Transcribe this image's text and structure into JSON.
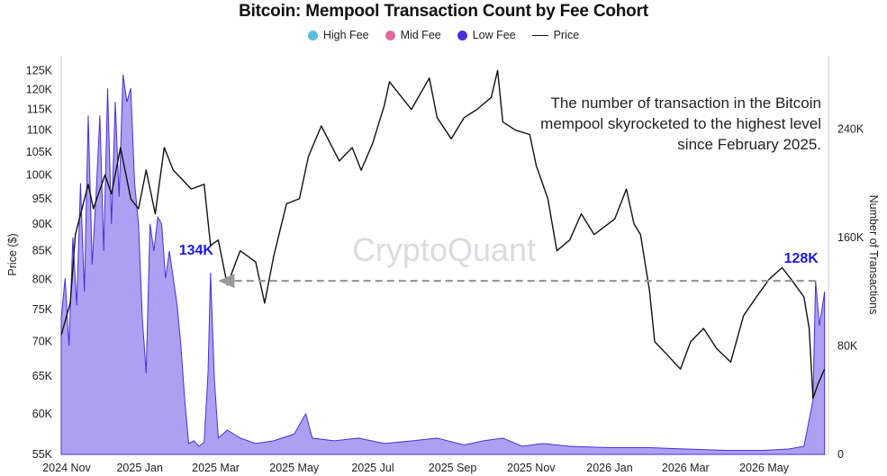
{
  "chart_data": {
    "type": "area",
    "title": "Bitcoin: Mempool Transaction Count by Fee Cohort",
    "ylabel_left": "Price ($)",
    "ylabel_right": "Number of Transactions",
    "watermark": "CryptoQuant",
    "annotation": "The number of transaction in the Bitcoin mempool skyrocketed to the highest level since February 2025.",
    "legend_position": "top-center",
    "legend": [
      {
        "name": "High Fee",
        "color": "#5bc0de",
        "kind": "dot"
      },
      {
        "name": "Mid Fee",
        "color": "#e06aa0",
        "kind": "dot"
      },
      {
        "name": "Low Fee",
        "color": "#4a2fd6",
        "kind": "dot"
      },
      {
        "name": "Price",
        "color": "#111111",
        "kind": "line"
      }
    ],
    "x_ticks": [
      "2024 Nov",
      "2025 Jan",
      "2025 Mar",
      "2025 May",
      "2025 Jul",
      "2025 Sep",
      "2025 Nov",
      "2026 Jan",
      "2026 Mar",
      "2026 May"
    ],
    "y_left_ticks": [
      55000,
      60000,
      65000,
      70000,
      75000,
      80000,
      85000,
      90000,
      95000,
      100000,
      105000,
      110000,
      115000,
      120000,
      125000
    ],
    "y_left_tick_labels": [
      "55K",
      "60K",
      "65K",
      "70K",
      "75K",
      "80K",
      "85K",
      "90K",
      "95K",
      "100K",
      "105K",
      "110K",
      "115K",
      "120K",
      "125K"
    ],
    "y_left_scale": "log",
    "y_right_ticks": [
      0,
      80000,
      160000,
      240000
    ],
    "y_right_tick_labels": [
      "0",
      "80K",
      "160K",
      "240K"
    ],
    "callouts": [
      {
        "label": "134K",
        "date": "2025-02-25",
        "value": 134000
      },
      {
        "label": "128K",
        "date": "2026-06-10",
        "value": 128000
      }
    ],
    "price_series": {
      "name": "Price",
      "points": [
        [
          "2024-11-01",
          71000
        ],
        [
          "2024-11-08",
          76000
        ],
        [
          "2024-11-12",
          88000
        ],
        [
          "2024-11-22",
          98000
        ],
        [
          "2024-11-26",
          93000
        ],
        [
          "2024-12-05",
          100000
        ],
        [
          "2024-12-10",
          96000
        ],
        [
          "2024-12-17",
          106000
        ],
        [
          "2024-12-25",
          95000
        ],
        [
          "2024-12-31",
          93000
        ],
        [
          "2025-01-06",
          101000
        ],
        [
          "2025-01-13",
          92000
        ],
        [
          "2025-01-20",
          106000
        ],
        [
          "2025-01-27",
          101000
        ],
        [
          "2025-02-03",
          99000
        ],
        [
          "2025-02-10",
          97000
        ],
        [
          "2025-02-20",
          98000
        ],
        [
          "2025-02-25",
          86000
        ],
        [
          "2025-03-03",
          87000
        ],
        [
          "2025-03-10",
          79000
        ],
        [
          "2025-03-20",
          85000
        ],
        [
          "2025-04-01",
          83000
        ],
        [
          "2025-04-08",
          76000
        ],
        [
          "2025-04-15",
          84000
        ],
        [
          "2025-04-25",
          94000
        ],
        [
          "2025-05-05",
          95000
        ],
        [
          "2025-05-12",
          104000
        ],
        [
          "2025-05-22",
          111000
        ],
        [
          "2025-06-05",
          103000
        ],
        [
          "2025-06-15",
          106000
        ],
        [
          "2025-06-22",
          101000
        ],
        [
          "2025-07-01",
          107000
        ],
        [
          "2025-07-10",
          116000
        ],
        [
          "2025-07-14",
          122000
        ],
        [
          "2025-07-31",
          115000
        ],
        [
          "2025-08-14",
          123000
        ],
        [
          "2025-08-20",
          113000
        ],
        [
          "2025-08-31",
          108000
        ],
        [
          "2025-09-10",
          113000
        ],
        [
          "2025-09-20",
          115000
        ],
        [
          "2025-10-01",
          118000
        ],
        [
          "2025-10-06",
          125000
        ],
        [
          "2025-10-10",
          112000
        ],
        [
          "2025-10-20",
          110000
        ],
        [
          "2025-10-31",
          109000
        ],
        [
          "2025-11-05",
          102000
        ],
        [
          "2025-11-14",
          95000
        ],
        [
          "2025-11-21",
          85000
        ],
        [
          "2025-12-01",
          87000
        ],
        [
          "2025-12-10",
          92000
        ],
        [
          "2025-12-20",
          88000
        ],
        [
          "2026-01-05",
          91000
        ],
        [
          "2026-01-14",
          97000
        ],
        [
          "2026-01-20",
          90000
        ],
        [
          "2026-01-25",
          88000
        ],
        [
          "2026-02-01",
          78000
        ],
        [
          "2026-02-05",
          70000
        ],
        [
          "2026-02-15",
          68000
        ],
        [
          "2026-02-25",
          66000
        ],
        [
          "2026-03-05",
          70000
        ],
        [
          "2026-03-15",
          72000
        ],
        [
          "2026-03-25",
          69000
        ],
        [
          "2026-04-05",
          67000
        ],
        [
          "2026-04-15",
          74000
        ],
        [
          "2026-04-25",
          77000
        ],
        [
          "2026-05-05",
          80000
        ],
        [
          "2026-05-15",
          82000
        ],
        [
          "2026-05-22",
          80000
        ],
        [
          "2026-06-01",
          77000
        ],
        [
          "2026-06-05",
          72000
        ],
        [
          "2026-06-08",
          62000
        ],
        [
          "2026-06-12",
          64000
        ],
        [
          "2026-06-17",
          66000
        ]
      ]
    },
    "low_fee_series": {
      "name": "Low Fee",
      "points": [
        [
          "2024-11-01",
          100000
        ],
        [
          "2024-11-04",
          130000
        ],
        [
          "2024-11-07",
          80000
        ],
        [
          "2024-11-10",
          160000
        ],
        [
          "2024-11-13",
          110000
        ],
        [
          "2024-11-16",
          200000
        ],
        [
          "2024-11-19",
          120000
        ],
        [
          "2024-11-22",
          250000
        ],
        [
          "2024-11-25",
          140000
        ],
        [
          "2024-11-28",
          190000
        ],
        [
          "2024-12-01",
          250000
        ],
        [
          "2024-12-04",
          150000
        ],
        [
          "2024-12-07",
          270000
        ],
        [
          "2024-12-10",
          170000
        ],
        [
          "2024-12-13",
          260000
        ],
        [
          "2024-12-16",
          190000
        ],
        [
          "2024-12-19",
          280000
        ],
        [
          "2024-12-22",
          260000
        ],
        [
          "2024-12-25",
          270000
        ],
        [
          "2024-12-28",
          200000
        ],
        [
          "2024-12-31",
          170000
        ],
        [
          "2025-01-03",
          100000
        ],
        [
          "2025-01-06",
          60000
        ],
        [
          "2025-01-09",
          170000
        ],
        [
          "2025-01-12",
          150000
        ],
        [
          "2025-01-15",
          175000
        ],
        [
          "2025-01-18",
          170000
        ],
        [
          "2025-01-21",
          130000
        ],
        [
          "2025-01-24",
          150000
        ],
        [
          "2025-01-27",
          130000
        ],
        [
          "2025-01-30",
          110000
        ],
        [
          "2025-02-02",
          80000
        ],
        [
          "2025-02-05",
          40000
        ],
        [
          "2025-02-08",
          8000
        ],
        [
          "2025-02-12",
          10000
        ],
        [
          "2025-02-16",
          6000
        ],
        [
          "2025-02-20",
          9000
        ],
        [
          "2025-02-23",
          60000
        ],
        [
          "2025-02-25",
          134000
        ],
        [
          "2025-02-28",
          55000
        ],
        [
          "2025-03-03",
          12000
        ],
        [
          "2025-03-10",
          18000
        ],
        [
          "2025-03-20",
          12000
        ],
        [
          "2025-04-01",
          8000
        ],
        [
          "2025-04-15",
          10000
        ],
        [
          "2025-05-01",
          15000
        ],
        [
          "2025-05-10",
          30000
        ],
        [
          "2025-05-15",
          12000
        ],
        [
          "2025-06-01",
          10000
        ],
        [
          "2025-06-20",
          12000
        ],
        [
          "2025-07-10",
          8000
        ],
        [
          "2025-08-01",
          10000
        ],
        [
          "2025-08-20",
          12000
        ],
        [
          "2025-09-10",
          7000
        ],
        [
          "2025-09-25",
          10000
        ],
        [
          "2025-10-10",
          12000
        ],
        [
          "2025-10-25",
          6000
        ],
        [
          "2025-11-10",
          8000
        ],
        [
          "2025-12-01",
          6000
        ],
        [
          "2026-01-01",
          5000
        ],
        [
          "2026-02-01",
          5000
        ],
        [
          "2026-03-01",
          4000
        ],
        [
          "2026-04-01",
          3000
        ],
        [
          "2026-05-01",
          3000
        ],
        [
          "2026-05-20",
          4000
        ],
        [
          "2026-06-01",
          6000
        ],
        [
          "2026-06-08",
          40000
        ],
        [
          "2026-06-10",
          128000
        ],
        [
          "2026-06-13",
          95000
        ],
        [
          "2026-06-17",
          120000
        ]
      ]
    },
    "reference_line": {
      "style": "dashed-arrow",
      "value_transactions": 128000,
      "from": "2026-06-10",
      "to": "2025-03-03"
    }
  }
}
